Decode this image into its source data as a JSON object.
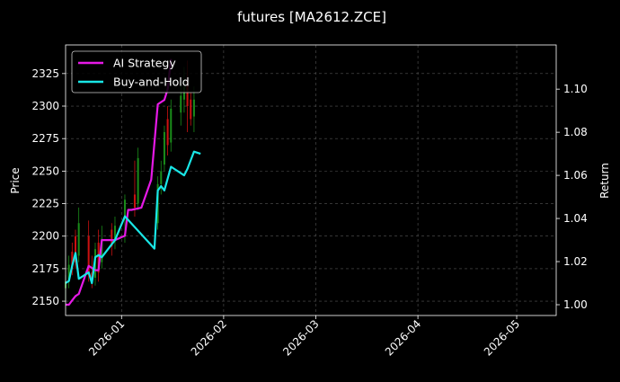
{
  "chart_data": {
    "type": "line",
    "title": "futures [MA2612.ZCE]",
    "xlabel": "",
    "ylabel_left": "Price",
    "ylabel_right": "Return",
    "x_ticks": [
      "2026-01",
      "2026-02",
      "2026-03",
      "2026-04",
      "2026-05"
    ],
    "x_tick_dates": [
      "2026-01-01",
      "2026-02-01",
      "2026-03-01",
      "2026-04-01",
      "2026-05-01"
    ],
    "xlim": [
      "2025-12-15",
      "2026-05-13"
    ],
    "y_left_ticks": [
      2150,
      2175,
      2200,
      2225,
      2250,
      2275,
      2300,
      2325
    ],
    "y_left_lim": [
      2139,
      2347
    ],
    "y_right_ticks": [
      "1.00",
      "1.02",
      "1.04",
      "1.06",
      "1.08",
      "1.10"
    ],
    "y_right_lim": [
      0.995,
      1.1205
    ],
    "grid": true,
    "legend_position": "top-left",
    "colors": {
      "background": "#000000",
      "up_candle": "#1a8c1a",
      "down_candle": "#cc1111",
      "ai_strategy": "#e619e6",
      "buy_and_hold": "#19e6e6",
      "grid": "#555555",
      "axis": "#ffffff"
    },
    "candles": [
      {
        "date": "2025-12-15",
        "open": 2160,
        "close": 2165,
        "low": 2150,
        "high": 2170
      },
      {
        "date": "2025-12-16",
        "open": 2165,
        "close": 2178,
        "low": 2160,
        "high": 2185
      },
      {
        "date": "2025-12-17",
        "open": 2188,
        "close": 2175,
        "low": 2170,
        "high": 2195
      },
      {
        "date": "2025-12-18",
        "open": 2200,
        "close": 2180,
        "low": 2175,
        "high": 2205
      },
      {
        "date": "2025-12-19",
        "open": 2185,
        "close": 2210,
        "low": 2180,
        "high": 2222
      },
      {
        "date": "2025-12-22",
        "open": 2200,
        "close": 2170,
        "low": 2165,
        "high": 2212
      },
      {
        "date": "2025-12-23",
        "open": 2172,
        "close": 2168,
        "low": 2160,
        "high": 2185
      },
      {
        "date": "2025-12-24",
        "open": 2168,
        "close": 2190,
        "low": 2162,
        "high": 2195
      },
      {
        "date": "2025-12-25",
        "open": 2195,
        "close": 2172,
        "low": 2165,
        "high": 2205
      },
      {
        "date": "2025-12-26",
        "open": 2180,
        "close": 2198,
        "low": 2175,
        "high": 2208
      },
      {
        "date": "2025-12-29",
        "open": 2205,
        "close": 2192,
        "low": 2185,
        "high": 2210
      },
      {
        "date": "2025-12-30",
        "open": 2196,
        "close": 2208,
        "low": 2190,
        "high": 2215
      },
      {
        "date": "2026-01-02",
        "open": 2215,
        "close": 2228,
        "low": 2195,
        "high": 2232
      },
      {
        "date": "2026-01-05",
        "open": 2232,
        "close": 2222,
        "low": 2215,
        "high": 2258
      },
      {
        "date": "2026-01-06",
        "open": 2225,
        "close": 2260,
        "low": 2220,
        "high": 2268
      },
      {
        "date": "2026-01-12",
        "open": 2210,
        "close": 2240,
        "low": 2205,
        "high": 2246
      },
      {
        "date": "2026-01-13",
        "open": 2240,
        "close": 2250,
        "low": 2232,
        "high": 2258
      },
      {
        "date": "2026-01-14",
        "open": 2255,
        "close": 2280,
        "low": 2250,
        "high": 2285
      },
      {
        "date": "2026-01-15",
        "open": 2290,
        "close": 2270,
        "low": 2262,
        "high": 2300
      },
      {
        "date": "2026-01-16",
        "open": 2272,
        "close": 2298,
        "low": 2265,
        "high": 2305
      },
      {
        "date": "2026-01-19",
        "open": 2295,
        "close": 2308,
        "low": 2285,
        "high": 2318
      },
      {
        "date": "2026-01-20",
        "open": 2305,
        "close": 2315,
        "low": 2295,
        "high": 2330
      },
      {
        "date": "2026-01-21",
        "open": 2320,
        "close": 2300,
        "low": 2280,
        "high": 2335
      },
      {
        "date": "2026-01-22",
        "open": 2305,
        "close": 2290,
        "low": 2285,
        "high": 2310
      },
      {
        "date": "2026-01-23",
        "open": 2292,
        "close": 2305,
        "low": 2280,
        "high": 2315
      }
    ],
    "series": [
      {
        "name": "AI Strategy",
        "axis": "right",
        "color": "#e619e6",
        "points": [
          [
            "2025-12-15",
            1.0
          ],
          [
            "2025-12-16",
            1.0
          ],
          [
            "2025-12-17",
            1.002
          ],
          [
            "2025-12-18",
            1.004
          ],
          [
            "2025-12-19",
            1.005
          ],
          [
            "2025-12-22",
            1.018
          ],
          [
            "2025-12-23",
            1.017
          ],
          [
            "2025-12-24",
            1.016
          ],
          [
            "2025-12-25",
            1.016
          ],
          [
            "2025-12-26",
            1.03
          ],
          [
            "2025-12-29",
            1.03
          ],
          [
            "2025-12-30",
            1.03
          ],
          [
            "2026-01-02",
            1.032
          ],
          [
            "2026-01-03",
            1.044
          ],
          [
            "2026-01-04",
            1.044
          ],
          [
            "2026-01-07",
            1.045
          ],
          [
            "2026-01-10",
            1.058
          ],
          [
            "2026-01-12",
            1.093
          ],
          [
            "2026-01-14",
            1.095
          ],
          [
            "2026-01-15",
            1.1
          ],
          [
            "2026-01-16",
            1.114
          ]
        ]
      },
      {
        "name": "Buy-and-Hold",
        "axis": "right",
        "color": "#19e6e6",
        "points": [
          [
            "2025-12-15",
            1.01
          ],
          [
            "2025-12-16",
            1.011
          ],
          [
            "2025-12-17",
            1.018
          ],
          [
            "2025-12-18",
            1.024
          ],
          [
            "2025-12-19",
            1.012
          ],
          [
            "2025-12-22",
            1.015
          ],
          [
            "2025-12-23",
            1.01
          ],
          [
            "2025-12-24",
            1.022
          ],
          [
            "2025-12-25",
            1.023
          ],
          [
            "2025-12-26",
            1.022
          ],
          [
            "2025-12-30",
            1.03
          ],
          [
            "2026-01-02",
            1.041
          ],
          [
            "2026-01-11",
            1.026
          ],
          [
            "2026-01-12",
            1.053
          ],
          [
            "2026-01-13",
            1.055
          ],
          [
            "2026-01-14",
            1.053
          ],
          [
            "2026-01-16",
            1.064
          ],
          [
            "2026-01-20",
            1.06
          ],
          [
            "2026-01-21",
            1.063
          ],
          [
            "2026-01-23",
            1.071
          ],
          [
            "2026-01-25",
            1.07
          ]
        ]
      }
    ]
  }
}
